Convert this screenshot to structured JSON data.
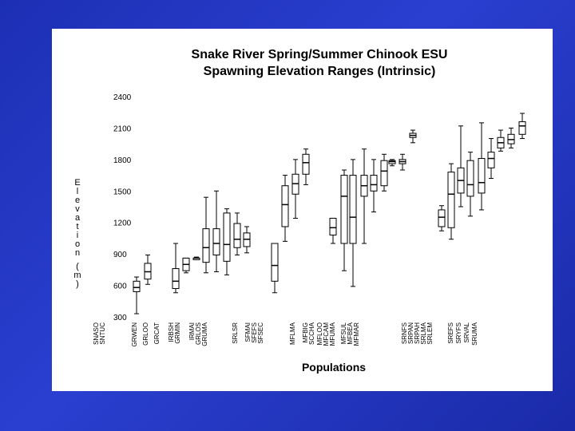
{
  "colors": {
    "background": "#2236c4",
    "panel": "#ffffff",
    "ink": "#000000"
  },
  "chart_data": {
    "type": "boxplot",
    "title": [
      "Snake River Spring/Summer Chinook ESU",
      "Spawning Elevation Ranges (Intrinsic)"
    ],
    "xlabel": "Populations",
    "ylabel": "Elevation (m)",
    "ylim": [
      300,
      2400
    ],
    "yticks": [
      300,
      600,
      900,
      1200,
      1500,
      1800,
      2100,
      2400
    ],
    "grid": false,
    "legend": "none",
    "categories": [
      "SNASO",
      "SNTUC",
      "GRWEN",
      "GRLOO",
      "GRCAT",
      "IRBSH",
      "GRMIN",
      "IRMAI",
      "GRLOS",
      "GRUMA",
      "SRLSR",
      "SFMAI",
      "SFEFS",
      "SFSEC",
      "MFLMA",
      "MFBIG",
      "SCCHA",
      "MFLOO",
      "MFCAM",
      "MFUMA",
      "MFSUL",
      "MFBEA",
      "MFMAR",
      "SRNFS",
      "SRPAN",
      "SRPAH",
      "SRLMA",
      "SRLEM",
      "SREFS",
      "SRYFS",
      "SRVAL",
      "SRUMA"
    ],
    "series": [
      {
        "group": 1,
        "boxes": [
          {
            "min": 330,
            "q1": 540,
            "median": 580,
            "q3": 640,
            "max": 680
          },
          {
            "min": 610,
            "q1": 660,
            "median": 730,
            "q3": 810,
            "max": 890
          }
        ]
      },
      {
        "group": 2,
        "boxes": [
          {
            "min": 530,
            "q1": 570,
            "median": 640,
            "q3": 760,
            "max": 1000
          },
          {
            "min": 720,
            "q1": 740,
            "median": 800,
            "q3": 860,
            "max": 860
          },
          {
            "min": 850,
            "q1": 850,
            "median": 860,
            "q3": 860,
            "max": 870
          }
        ]
      },
      {
        "group": 3,
        "boxes": [
          {
            "min": 720,
            "q1": 820,
            "median": 960,
            "q3": 1140,
            "max": 1440
          },
          {
            "min": 730,
            "q1": 890,
            "median": 1000,
            "q3": 1140,
            "max": 1500
          },
          {
            "min": 700,
            "q1": 830,
            "median": 990,
            "q3": 1290,
            "max": 1330
          },
          {
            "min": 890,
            "q1": 960,
            "median": 1040,
            "q3": 1190,
            "max": 1290
          },
          {
            "min": 910,
            "q1": 970,
            "median": 1040,
            "q3": 1100,
            "max": 1160
          }
        ]
      },
      {
        "group": 4,
        "boxes": [
          {
            "min": 530,
            "q1": 640,
            "median": 790,
            "q3": 1000,
            "max": 1000
          },
          {
            "min": 1020,
            "q1": 1160,
            "median": 1370,
            "q3": 1550,
            "max": 1650
          },
          {
            "min": 1240,
            "q1": 1470,
            "median": 1570,
            "q3": 1660,
            "max": 1800
          },
          {
            "min": 1560,
            "q1": 1660,
            "median": 1770,
            "q3": 1850,
            "max": 1900
          }
        ]
      },
      {
        "group": 5,
        "boxes": [
          {
            "min": 1000,
            "q1": 1080,
            "median": 1150,
            "q3": 1240,
            "max": 1240
          },
          {
            "min": 740,
            "q1": 1000,
            "median": 1450,
            "q3": 1650,
            "max": 1700
          },
          {
            "min": 590,
            "q1": 1000,
            "median": 1250,
            "q3": 1650,
            "max": 1800
          },
          {
            "min": 1000,
            "q1": 1450,
            "median": 1550,
            "q3": 1650,
            "max": 1900
          },
          {
            "min": 1300,
            "q1": 1500,
            "median": 1560,
            "q3": 1650,
            "max": 1800
          },
          {
            "min": 1500,
            "q1": 1550,
            "median": 1690,
            "q3": 1790,
            "max": 1850
          }
        ]
      },
      {
        "group": 6,
        "boxes": [
          {
            "min": 1740,
            "q1": 1760,
            "median": 1780,
            "q3": 1790,
            "max": 1800
          },
          {
            "min": 1700,
            "q1": 1760,
            "median": 1780,
            "q3": 1800,
            "max": 1850
          },
          {
            "min": 1960,
            "q1": 2010,
            "median": 2030,
            "q3": 2050,
            "max": 2080
          }
        ]
      },
      {
        "group": 7,
        "boxes": [
          {
            "min": 1120,
            "q1": 1160,
            "median": 1250,
            "q3": 1320,
            "max": 1360
          },
          {
            "min": 1040,
            "q1": 1150,
            "median": 1470,
            "q3": 1680,
            "max": 1760
          },
          {
            "min": 1350,
            "q1": 1480,
            "median": 1600,
            "q3": 1720,
            "max": 2120
          },
          {
            "min": 1260,
            "q1": 1450,
            "median": 1560,
            "q3": 1790,
            "max": 1870
          },
          {
            "min": 1320,
            "q1": 1480,
            "median": 1580,
            "q3": 1810,
            "max": 2150
          },
          {
            "min": 1620,
            "q1": 1720,
            "median": 1810,
            "q3": 1870,
            "max": 2000
          },
          {
            "min": 1880,
            "q1": 1910,
            "median": 1960,
            "q3": 2010,
            "max": 2080
          },
          {
            "min": 1910,
            "q1": 1950,
            "median": 1990,
            "q3": 2040,
            "max": 2100
          },
          {
            "min": 2000,
            "q1": 2040,
            "median": 2120,
            "q3": 2160,
            "max": 2240
          }
        ]
      }
    ]
  }
}
